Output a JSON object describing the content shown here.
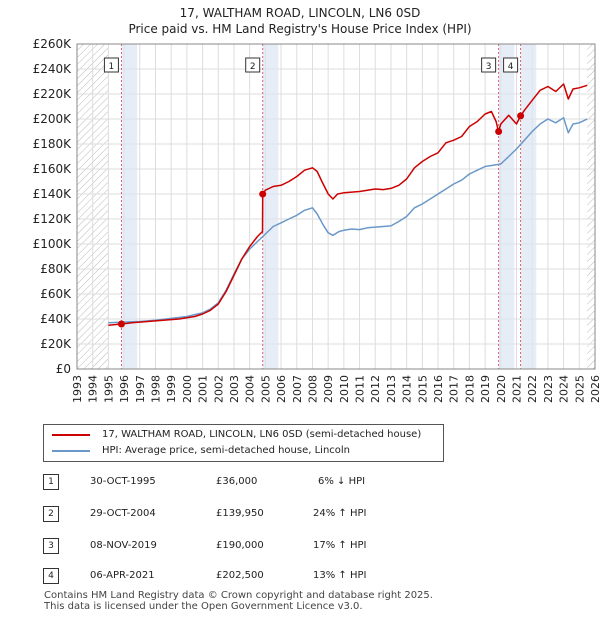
{
  "title_line1": "17, WALTHAM ROAD, LINCOLN, LN6 0SD",
  "title_line2": "Price paid vs. HM Land Registry's House Price Index (HPI)",
  "chart_data": {
    "type": "line",
    "xlim": [
      1993,
      2026
    ],
    "ylim": [
      0,
      260000
    ],
    "x_ticks": [
      1993,
      1994,
      1995,
      1996,
      1997,
      1998,
      1999,
      2000,
      2001,
      2002,
      2003,
      2004,
      2005,
      2006,
      2007,
      2008,
      2009,
      2010,
      2011,
      2012,
      2013,
      2014,
      2015,
      2016,
      2017,
      2018,
      2019,
      2020,
      2021,
      2022,
      2023,
      2024,
      2025,
      2026
    ],
    "y_ticks": [
      0,
      20000,
      40000,
      60000,
      80000,
      100000,
      120000,
      140000,
      160000,
      180000,
      200000,
      220000,
      240000,
      260000
    ],
    "y_tick_labels": [
      "£0",
      "£20K",
      "£40K",
      "£60K",
      "£80K",
      "£100K",
      "£120K",
      "£140K",
      "£160K",
      "£180K",
      "£200K",
      "£220K",
      "£240K",
      "£260K"
    ],
    "data_start": 1995.0,
    "data_end": 2025.5,
    "series": [
      {
        "name": "17, WALTHAM ROAD, LINCOLN, LN6 0SD (semi-detached house)",
        "color": "#cc0000",
        "x": [
          1995.0,
          1995.83,
          1996.5,
          1997.5,
          1998.5,
          1999.5,
          2000.5,
          2001.0,
          2001.5,
          2002.0,
          2002.5,
          2003.0,
          2003.5,
          2004.0,
          2004.5,
          2004.82,
          2004.83,
          2005.0,
          2005.5,
          2006.0,
          2006.5,
          2007.0,
          2007.5,
          2008.0,
          2008.3,
          2008.6,
          2009.0,
          2009.3,
          2009.6,
          2010.0,
          2010.5,
          2011.0,
          2011.5,
          2012.0,
          2012.5,
          2013.0,
          2013.5,
          2014.0,
          2014.5,
          2015.0,
          2015.5,
          2016.0,
          2016.5,
          2017.0,
          2017.5,
          2018.0,
          2018.5,
          2019.0,
          2019.4,
          2019.7,
          2019.85,
          2020.0,
          2020.5,
          2021.0,
          2021.26,
          2021.5,
          2022.0,
          2022.5,
          2023.0,
          2023.5,
          2024.0,
          2024.3,
          2024.6,
          2025.0,
          2025.5
        ],
        "y": [
          35000,
          36000,
          37000,
          38000,
          39000,
          40000,
          42000,
          44000,
          47000,
          52000,
          62000,
          75000,
          88000,
          98000,
          106000,
          110000,
          139950,
          143000,
          146000,
          147000,
          150000,
          154000,
          159000,
          161000,
          158000,
          150000,
          140000,
          136000,
          140000,
          141000,
          141500,
          142000,
          143000,
          144000,
          143500,
          144500,
          147000,
          152000,
          161000,
          166000,
          170000,
          173000,
          181000,
          183000,
          186000,
          194000,
          198000,
          204000,
          206000,
          198000,
          190000,
          196000,
          203000,
          196000,
          202500,
          207000,
          215000,
          223000,
          226000,
          222000,
          228000,
          216000,
          224000,
          225000,
          227000
        ]
      },
      {
        "name": "HPI: Average price, semi-detached house, Lincoln",
        "color": "#6a98c8",
        "x": [
          1995.0,
          1996.0,
          1997.0,
          1998.0,
          1999.0,
          2000.0,
          2000.5,
          2001.0,
          2001.5,
          2002.0,
          2002.5,
          2003.0,
          2003.5,
          2004.0,
          2004.5,
          2005.0,
          2005.5,
          2006.0,
          2006.5,
          2007.0,
          2007.5,
          2008.0,
          2008.3,
          2008.7,
          2009.0,
          2009.3,
          2009.7,
          2010.0,
          2010.5,
          2011.0,
          2011.5,
          2012.0,
          2012.5,
          2013.0,
          2013.5,
          2014.0,
          2014.5,
          2015.0,
          2015.5,
          2016.0,
          2016.5,
          2017.0,
          2017.5,
          2018.0,
          2018.5,
          2019.0,
          2019.5,
          2020.0,
          2020.5,
          2021.0,
          2021.5,
          2022.0,
          2022.5,
          2023.0,
          2023.5,
          2024.0,
          2024.3,
          2024.6,
          2025.0,
          2025.5
        ],
        "y": [
          37000,
          37500,
          38000,
          39000,
          40500,
          42000,
          43500,
          45000,
          48000,
          53000,
          63000,
          76000,
          88000,
          96000,
          102000,
          108000,
          114000,
          117000,
          120000,
          123000,
          127000,
          129000,
          124000,
          115000,
          109000,
          107000,
          110000,
          111000,
          112000,
          111500,
          113000,
          113500,
          114000,
          114500,
          118000,
          122000,
          129000,
          132000,
          136000,
          140000,
          144000,
          148000,
          151000,
          156000,
          159000,
          162000,
          163000,
          164000,
          170000,
          176000,
          183000,
          190000,
          196000,
          200000,
          197000,
          201000,
          189000,
          196000,
          197000,
          200000
        ]
      }
    ],
    "sales": [
      {
        "num": "1",
        "x": 1995.83,
        "y": 36000,
        "date": "30-OCT-1995",
        "price": "£36,000",
        "hpi": "6% ↓ HPI"
      },
      {
        "num": "2",
        "x": 2004.83,
        "y": 139950,
        "date": "29-OCT-2004",
        "price": "£139,950",
        "hpi": "24% ↑ HPI"
      },
      {
        "num": "3",
        "x": 2019.86,
        "y": 190000,
        "date": "08-NOV-2019",
        "price": "£190,000",
        "hpi": "17% ↑ HPI"
      },
      {
        "num": "4",
        "x": 2021.26,
        "y": 202500,
        "date": "06-APR-2021",
        "price": "£202,500",
        "hpi": "13% ↑ HPI"
      }
    ],
    "colors": {
      "red": "#cc0000",
      "blue": "#6a98c8",
      "shade": "#dde6f4",
      "hatch": "#bbbbbb",
      "grid": "#dddddd"
    }
  },
  "legend": {
    "red_label": "17, WALTHAM ROAD, LINCOLN, LN6 0SD (semi-detached house)",
    "blue_label": "HPI: Average price, semi-detached house, Lincoln"
  },
  "footer": {
    "line1": "Contains HM Land Registry data © Crown copyright and database right 2025.",
    "line2": "This data is licensed under the Open Government Licence v3.0."
  }
}
